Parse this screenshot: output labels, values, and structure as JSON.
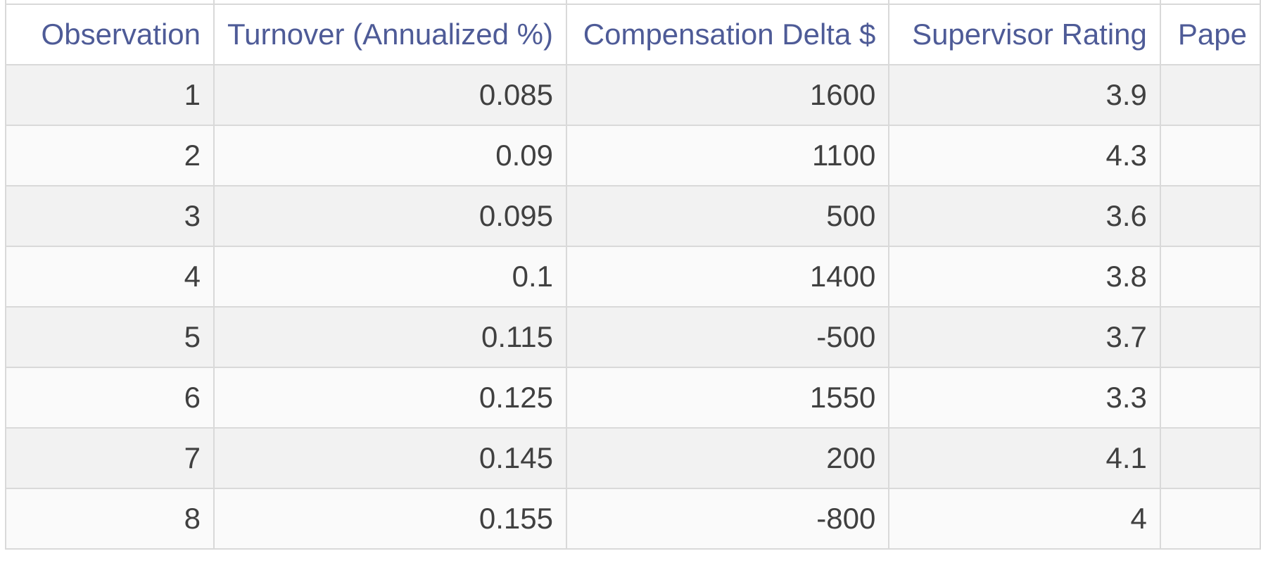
{
  "table": {
    "columns": [
      {
        "id": "observation",
        "label": "Observation"
      },
      {
        "id": "turnover",
        "label": "Turnover (Annualized %)"
      },
      {
        "id": "compensation_delta",
        "label": "Compensation Delta $"
      },
      {
        "id": "supervisor_rating",
        "label": "Supervisor Rating"
      },
      {
        "id": "pape_clipped",
        "label": "Pape"
      }
    ],
    "rows": [
      [
        "1",
        "0.085",
        "1600",
        "3.9",
        ""
      ],
      [
        "2",
        "0.09",
        "1100",
        "4.3",
        ""
      ],
      [
        "3",
        "0.095",
        "500",
        "3.6",
        ""
      ],
      [
        "4",
        "0.1",
        "1400",
        "3.8",
        ""
      ],
      [
        "5",
        "0.115",
        "-500",
        "3.7",
        ""
      ],
      [
        "6",
        "0.125",
        "1550",
        "3.3",
        ""
      ],
      [
        "7",
        "0.145",
        "200",
        "4.1",
        ""
      ],
      [
        "8",
        "0.155",
        "-800",
        "4",
        ""
      ]
    ]
  },
  "colors": {
    "header_text": "#4e5b97",
    "cell_text": "#404040",
    "border": "#d9d9d9",
    "row_odd": "#f2f2f2",
    "row_even": "#fafafa",
    "header_bg": "#ffffff",
    "page_bg": "#ffffff"
  }
}
